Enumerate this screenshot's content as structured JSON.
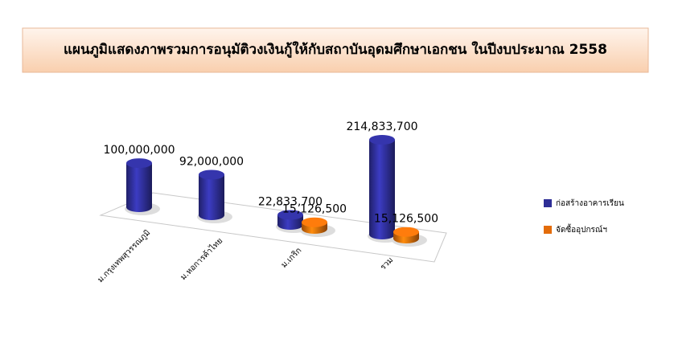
{
  "chart_data": {
    "type": "bar3d",
    "title": "แผนภูมิแสดงภาพรวมการอนุมัติวงเงินกู้ให้กับสถาบันอุดมศึกษาเอกชน  ในปีงบประมาณ 2558",
    "categories": [
      "ม.กรุงเทพสุวรรณภูมิ",
      "ม.หอการค้าไทย",
      "ม.เกริก",
      "รวม"
    ],
    "series": [
      {
        "name": "ก่อสร้างอาคารเรียน",
        "color": "#2e2e96",
        "values": [
          100000000,
          92000000,
          22833700,
          214833700
        ],
        "value_labels": [
          "100,000,000",
          "92,000,000",
          "22,833,700",
          "214,833,700"
        ]
      },
      {
        "name": "จัดซื้ออุปกรณ์ฯ",
        "color": "#e36c0a",
        "values": [
          null,
          null,
          15126500,
          15126500
        ],
        "value_labels": [
          null,
          null,
          "15,126,500",
          "15,126,500"
        ]
      }
    ],
    "legend": "right"
  }
}
